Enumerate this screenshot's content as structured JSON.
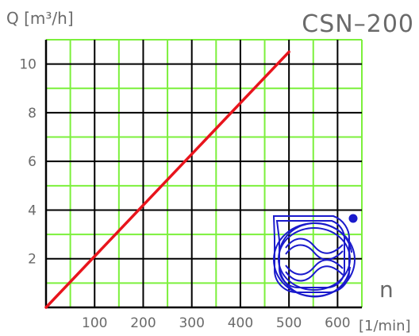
{
  "chart_data": {
    "type": "line",
    "title": "CSN–200",
    "ylabel": "Q [m³/h]",
    "xlabel_symbol": "n",
    "xlabel_unit": "[1/min]",
    "xlim": [
      0,
      650
    ],
    "ylim": [
      0,
      11
    ],
    "x_major_ticks": [
      100,
      200,
      300,
      400,
      500,
      600
    ],
    "y_major_ticks": [
      2,
      4,
      6,
      8,
      10
    ],
    "x_minor_step": 50,
    "y_minor_step": 1,
    "grid": true,
    "series": [
      {
        "x": [
          0,
          500
        ],
        "y": [
          0,
          10.5
        ]
      }
    ],
    "colors": {
      "line": "#e8141c",
      "grid_major": "#000000",
      "grid_minor": "#7cf03c",
      "pump_icon": "#1a1acc",
      "text": "#6a6a6a"
    },
    "icon": "pump-rotor-schematic-icon"
  }
}
